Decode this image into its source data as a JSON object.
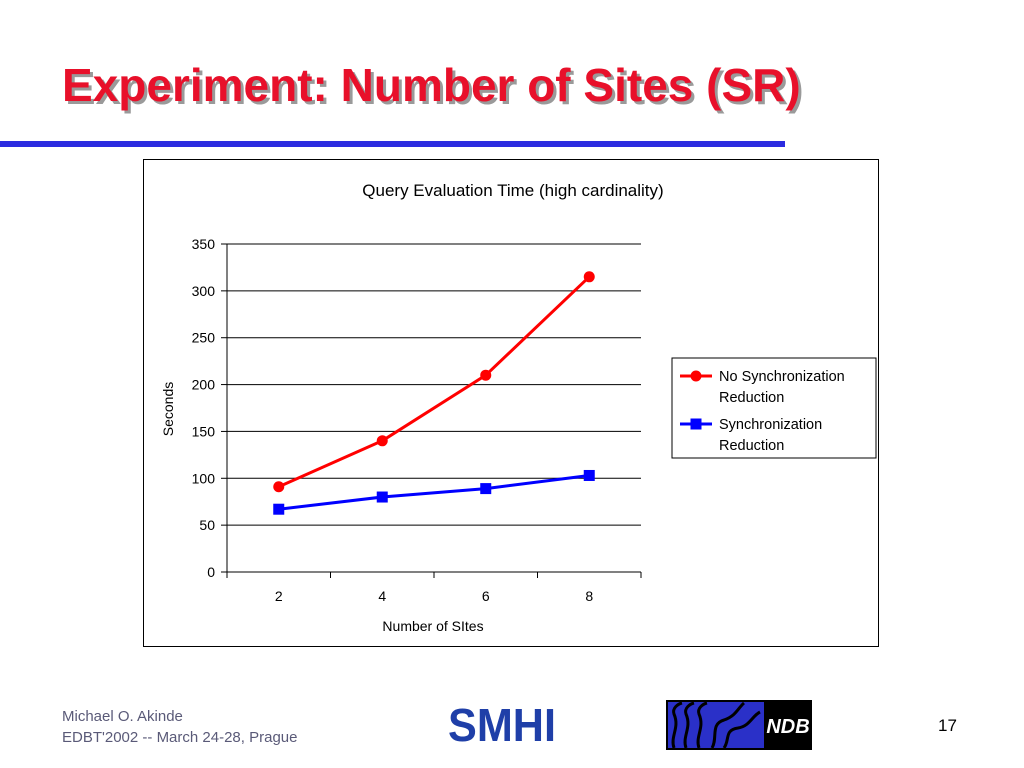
{
  "slide": {
    "title": "Experiment: Number of Sites (SR)",
    "footer": {
      "author": "Michael O. Akinde",
      "event": "EDBT'2002 -- March 24-28, Prague"
    },
    "page_number": "17",
    "logos": {
      "smhi": "SMHI",
      "ndb": "NDB"
    },
    "colors": {
      "title": "#e8102a",
      "rule": "#2b2be0"
    }
  },
  "chart_data": {
    "type": "line",
    "title": "Query Evaluation Time (high cardinality)",
    "xlabel": "Number of SItes",
    "ylabel": "Seconds",
    "categories": [
      "2",
      "4",
      "6",
      "8"
    ],
    "ylim": [
      0,
      350
    ],
    "yticks": [
      "0",
      "50",
      "100",
      "150",
      "200",
      "250",
      "300",
      "350"
    ],
    "grid": true,
    "legend_position": "right",
    "series": [
      {
        "name": "No Synchronization Reduction",
        "name_lines": [
          "No Synchronization",
          "Reduction"
        ],
        "values": [
          91,
          140,
          210,
          315
        ],
        "color": "#ff0000",
        "marker": "circle"
      },
      {
        "name": "Synchronization Reduction",
        "name_lines": [
          "Synchronization",
          "Reduction"
        ],
        "values": [
          67,
          80,
          89,
          103
        ],
        "color": "#0000ff",
        "marker": "square"
      }
    ]
  }
}
